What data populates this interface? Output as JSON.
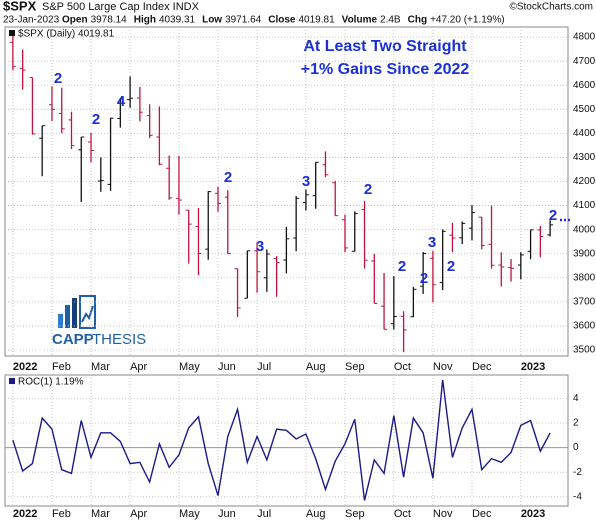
{
  "header": {
    "symbol": "$SPX",
    "name": "S&P 500 Large Cap Index INDX",
    "copyright": "©StockCharts.com",
    "date": "23-Jan-2023",
    "quote": [
      {
        "label": "Open",
        "value": "3978.14"
      },
      {
        "label": "High",
        "value": "4039.31"
      },
      {
        "label": "Low",
        "value": "3971.64"
      },
      {
        "label": "Close",
        "value": "4019.81"
      },
      {
        "label": "Volume",
        "value": "2.4B"
      },
      {
        "label": "Chg",
        "value": "+47.20 (+1.19%)"
      }
    ]
  },
  "logo": {
    "part1": "CAPP",
    "part2": "THESIS"
  },
  "chart_data": [
    {
      "type": "ohlc",
      "title": "At Least Two Straight",
      "subtitle": "+1% Gains Since 2022",
      "annotations": [
        "2",
        "2",
        "4",
        "2",
        "3",
        "3",
        "2",
        "2",
        "2",
        "3",
        "2",
        "2"
      ],
      "xlim": [
        0,
        56
      ],
      "xticks": [
        {
          "value": 0,
          "label": "2022"
        },
        {
          "value": 4,
          "label": "Feb"
        },
        {
          "value": 8,
          "label": "Mar"
        },
        {
          "value": 12,
          "label": "Apr"
        },
        {
          "value": 17,
          "label": "May"
        },
        {
          "value": 21,
          "label": "Jun"
        },
        {
          "value": 25,
          "label": "Jul"
        },
        {
          "value": 30,
          "label": "Aug"
        },
        {
          "value": 34,
          "label": "Sep"
        },
        {
          "value": 39,
          "label": "Oct"
        },
        {
          "value": 43,
          "label": "Nov"
        },
        {
          "value": 47,
          "label": "Dec"
        },
        {
          "value": 52,
          "label": "2023"
        }
      ],
      "ylim": [
        3475,
        4842
      ],
      "yticks": [
        3500,
        3600,
        3700,
        3800,
        3900,
        4000,
        4100,
        4200,
        4300,
        4400,
        4500,
        4600,
        4700,
        4800
      ],
      "grid": true,
      "series": [
        {
          "name": "$SPX (Daily) 4019.81",
          "up_color": "#111111",
          "down_color": "#c0143c",
          "open": [
            4778,
            4670,
            4632,
            4380,
            4519,
            4483,
            4456,
            4332,
            4364,
            4202,
            4188,
            4462,
            4540,
            4547,
            4474,
            4385,
            4255,
            4130,
            4081,
            4013,
            3919,
            4151,
            4135,
            3838,
            3715,
            3912,
            3800,
            3880,
            3874,
            3965,
            4113,
            4141,
            4270,
            4195,
            4041,
            3910,
            4084,
            3870,
            3682,
            3609,
            3640,
            3638,
            3765,
            3881,
            3780,
            3977,
            3966,
            4006,
            4052,
            3939,
            3853,
            3843,
            3853,
            3910,
            3999,
            3978.14
          ],
          "high": [
            4818,
            4748,
            4632,
            4432,
            4595,
            4590,
            4490,
            4385,
            4402,
            4300,
            4465,
            4546,
            4637,
            4593,
            4521,
            4512,
            4308,
            4307,
            4081,
            4090,
            4160,
            4178,
            4164,
            3838,
            3913,
            3946,
            3918,
            3890,
            4012,
            4140,
            4167,
            4280,
            4325,
            4203,
            4062,
            4076,
            4119,
            3900,
            3820,
            3807,
            3661,
            3762,
            3907,
            3912,
            4001,
            4028,
            4034,
            4101,
            4053,
            4100,
            3906,
            3878,
            3906,
            4000,
            4015,
            4039.31
          ],
          "low": [
            4662,
            4582,
            4395,
            4222,
            4451,
            4401,
            4335,
            4115,
            4279,
            4157,
            4161,
            4424,
            4506,
            4450,
            4381,
            4268,
            4124,
            4062,
            3859,
            3811,
            3875,
            4074,
            3900,
            3637,
            3715,
            3738,
            3742,
            3721,
            3818,
            3910,
            4080,
            4087,
            4218,
            4057,
            3907,
            3909,
            3838,
            3694,
            3585,
            3585,
            3491,
            3637,
            3733,
            3698,
            3749,
            3906,
            3940,
            3956,
            3918,
            3838,
            3764,
            3784,
            3794,
            3877,
            3885,
            3971.64
          ],
          "close": [
            4677,
            4663,
            4398,
            4432,
            4500,
            4419,
            4349,
            4385,
            4329,
            4204,
            4463,
            4543,
            4546,
            4488,
            4392,
            4272,
            4132,
            4123,
            4023,
            3901,
            4158,
            4109,
            3901,
            3675,
            3912,
            3825,
            3899,
            3863,
            3962,
            4130,
            4145,
            4280,
            4228,
            4058,
            3924,
            4067,
            3873,
            3693,
            3586,
            3639,
            3583,
            3752,
            3901,
            3771,
            3993,
            3965,
            4026,
            4071,
            3934,
            3852,
            3845,
            3839,
            3895,
            3999,
            3972,
            4019.81
          ]
        }
      ]
    },
    {
      "type": "line",
      "xlim": [
        0,
        56
      ],
      "xticks": [
        {
          "value": 0,
          "label": "2022"
        },
        {
          "value": 4,
          "label": "Feb"
        },
        {
          "value": 8,
          "label": "Mar"
        },
        {
          "value": 12,
          "label": "Apr"
        },
        {
          "value": 17,
          "label": "May"
        },
        {
          "value": 21,
          "label": "Jun"
        },
        {
          "value": 25,
          "label": "Jul"
        },
        {
          "value": 30,
          "label": "Aug"
        },
        {
          "value": 34,
          "label": "Sep"
        },
        {
          "value": 39,
          "label": "Oct"
        },
        {
          "value": 43,
          "label": "Nov"
        },
        {
          "value": 47,
          "label": "Dec"
        },
        {
          "value": 52,
          "label": "2023"
        }
      ],
      "ylim": [
        -4.75,
        5.9
      ],
      "yticks": [
        -4,
        -2,
        0,
        2,
        4
      ],
      "grid": true,
      "series": [
        {
          "name": "ROC(1) 1.19%",
          "color": "#1a1a8c",
          "values": [
            0.6,
            -1.9,
            -1.3,
            2.4,
            1.5,
            -1.8,
            -2.1,
            2.2,
            -0.8,
            1.2,
            1.2,
            0.5,
            -1.3,
            -1.2,
            -2.8,
            0.3,
            -1.6,
            -0.6,
            1.6,
            2.5,
            -1.3,
            -3.9,
            0.9,
            3.1,
            -1.2,
            0.9,
            -1.0,
            1.5,
            1.4,
            0.7,
            1.1,
            -0.9,
            -3.4,
            -1.1,
            0.3,
            2.3,
            -4.3,
            -1.0,
            -2.1,
            2.6,
            -2.4,
            2.4,
            1.2,
            -2.5,
            5.5,
            -0.8,
            1.6,
            3.1,
            -1.8,
            -0.9,
            -1.2,
            -0.4,
            1.8,
            2.2,
            -0.3,
            1.19
          ]
        }
      ]
    }
  ]
}
